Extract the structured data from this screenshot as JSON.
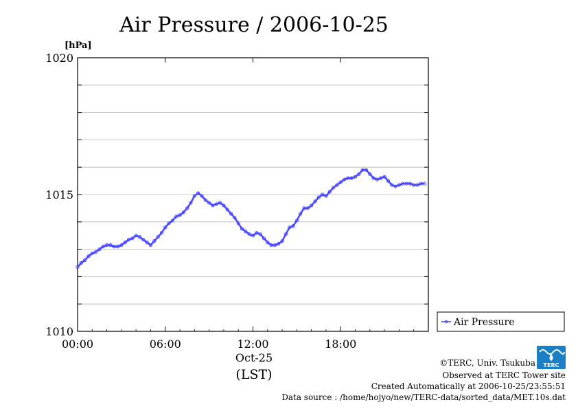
{
  "chart_data": {
    "type": "line",
    "title": "Air Pressure / 2006-10-25",
    "ylabel": "[hPa]",
    "xlabel": "(LST)",
    "date_label": "Oct-25",
    "ylim": [
      1010,
      1020
    ],
    "xlim": [
      0,
      23.75
    ],
    "y_ticks": [
      1010,
      1015,
      1020
    ],
    "y_tick_labels": [
      "1010",
      "1015",
      "1020"
    ],
    "y_grid": [
      1010,
      1011,
      1012,
      1013,
      1014,
      1015,
      1016,
      1017,
      1018,
      1019,
      1020
    ],
    "x_ticks": [
      0,
      6,
      12,
      18
    ],
    "x_tick_labels": [
      "00:00",
      "06:00",
      "12:00",
      "18:00"
    ],
    "grid": "horizontal",
    "legend": {
      "position": "right",
      "entries": [
        "Air Pressure"
      ]
    },
    "series": [
      {
        "name": "Air Pressure",
        "color": "#3a3aff",
        "x": [
          0,
          0.25,
          0.5,
          0.75,
          1,
          1.25,
          1.5,
          1.75,
          2,
          2.25,
          2.5,
          2.75,
          3,
          3.25,
          3.5,
          3.75,
          4,
          4.25,
          4.5,
          4.75,
          5,
          5.25,
          5.5,
          5.75,
          6,
          6.25,
          6.5,
          6.75,
          7,
          7.25,
          7.5,
          7.75,
          8,
          8.25,
          8.5,
          8.75,
          9,
          9.25,
          9.5,
          9.75,
          10,
          10.25,
          10.5,
          10.75,
          11,
          11.25,
          11.5,
          11.75,
          12,
          12.25,
          12.5,
          12.75,
          13,
          13.25,
          13.5,
          13.75,
          14,
          14.25,
          14.5,
          14.75,
          15,
          15.25,
          15.5,
          15.75,
          16,
          16.25,
          16.5,
          16.75,
          17,
          17.25,
          17.5,
          17.75,
          18,
          18.25,
          18.5,
          18.75,
          19,
          19.25,
          19.5,
          19.75,
          20,
          20.25,
          20.5,
          20.75,
          21,
          21.25,
          21.5,
          21.75,
          22,
          22.25,
          22.5,
          22.75,
          23,
          23.25,
          23.5,
          23.75
        ],
        "values": [
          1012.35,
          1012.5,
          1012.6,
          1012.75,
          1012.85,
          1012.9,
          1013.0,
          1013.1,
          1013.15,
          1013.15,
          1013.1,
          1013.1,
          1013.15,
          1013.25,
          1013.35,
          1013.4,
          1013.5,
          1013.45,
          1013.35,
          1013.25,
          1013.15,
          1013.3,
          1013.45,
          1013.6,
          1013.8,
          1013.95,
          1014.05,
          1014.2,
          1014.25,
          1014.35,
          1014.5,
          1014.7,
          1014.95,
          1015.05,
          1014.95,
          1014.8,
          1014.7,
          1014.6,
          1014.65,
          1014.7,
          1014.6,
          1014.45,
          1014.3,
          1014.15,
          1013.95,
          1013.75,
          1013.65,
          1013.55,
          1013.5,
          1013.6,
          1013.55,
          1013.4,
          1013.25,
          1013.15,
          1013.15,
          1013.2,
          1013.3,
          1013.55,
          1013.8,
          1013.85,
          1014.05,
          1014.3,
          1014.5,
          1014.5,
          1014.6,
          1014.75,
          1014.9,
          1015.0,
          1014.95,
          1015.1,
          1015.25,
          1015.35,
          1015.45,
          1015.55,
          1015.6,
          1015.6,
          1015.65,
          1015.75,
          1015.9,
          1015.9,
          1015.75,
          1015.6,
          1015.55,
          1015.6,
          1015.65,
          1015.5,
          1015.35,
          1015.3,
          1015.35,
          1015.4,
          1015.4,
          1015.4,
          1015.35,
          1015.35,
          1015.4,
          1015.4
        ]
      }
    ]
  },
  "credits": {
    "copyright": "©TERC, Univ. Tsukuba",
    "observed": "Observed at TERC Tower site",
    "created": "Created Automatically at 2006-10-25/23:55:51",
    "source": "Data source : /home/hojyo/new/TERC-data/sorted_data/MET.10s.dat"
  },
  "logo": {
    "text": "TERC",
    "color": "#1a7fc4"
  }
}
